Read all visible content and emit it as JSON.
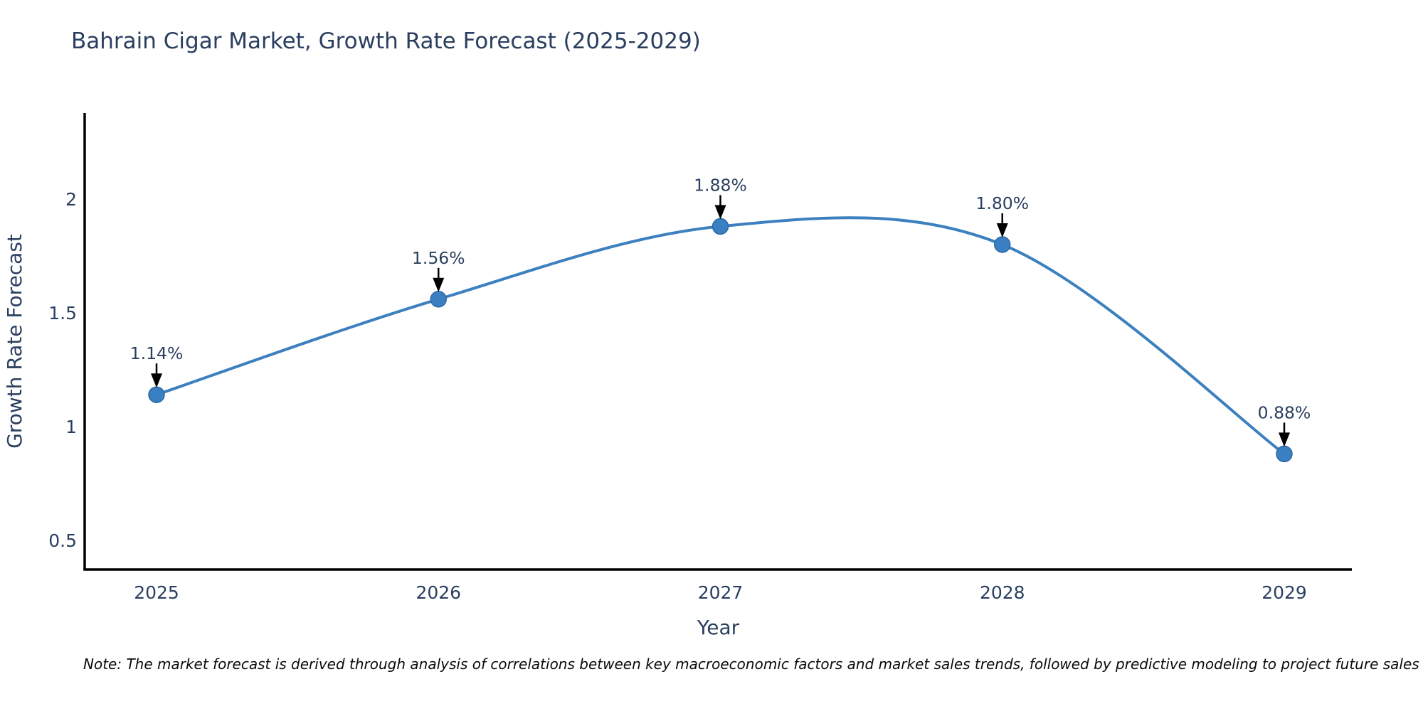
{
  "title": "Bahrain Cigar Market, Growth Rate Forecast (2025-2029)",
  "note": "Note: The market forecast is derived through analysis of correlations between key macroeconomic factors and market sales trends, followed by predictive modeling to project future sales",
  "chart_data": {
    "type": "line",
    "x": [
      2025,
      2026,
      2027,
      2028,
      2029
    ],
    "values": [
      1.14,
      1.56,
      1.88,
      1.8,
      0.88
    ],
    "point_labels": [
      "1.14%",
      "1.56%",
      "1.88%",
      "1.80%",
      "0.88%"
    ],
    "series_name": "Growth Rate Forecast",
    "title": "Bahrain Cigar Market, Growth Rate Forecast (2025-2029)",
    "xlabel": "Year",
    "ylabel": "Growth Rate Forecast",
    "xticks": [
      "2025",
      "2026",
      "2027",
      "2028",
      "2029"
    ],
    "yticks": [
      0.5,
      1,
      1.5,
      2
    ],
    "xlim": [
      2024.74,
      2029.24
    ],
    "ylim": [
      0.37,
      2.38
    ],
    "grid": false,
    "legend": "none",
    "line_shape": "spline",
    "line_color": "#3c80bf",
    "marker_color": "#3a7fc2",
    "marker_edge_color": "#2d6aa3",
    "annotation_text_color": "#2a3f5f",
    "annotation_arrow_color": "#000000",
    "axis_color": "#000000",
    "text_color": "#2a3f5f",
    "background_color": "#ffffff"
  }
}
